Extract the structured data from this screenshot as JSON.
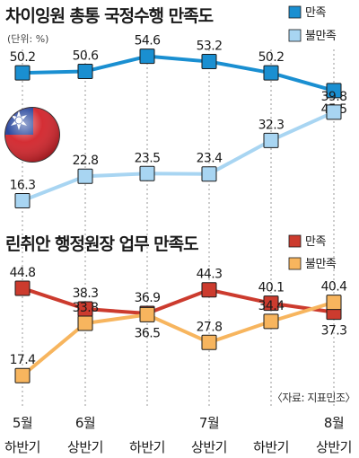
{
  "chart_data": [
    {
      "type": "line",
      "title": "차이잉원 총통 국정수행 만족도",
      "unit_note": "(단위: %)",
      "categories": [
        "5월 하반기",
        "6월 상반기",
        "6월 하반기",
        "7월 상반기",
        "7월 하반기",
        "8월 상반기"
      ],
      "series": [
        {
          "name": "만족",
          "color": "#1a8fd1",
          "values": [
            50.2,
            50.6,
            54.6,
            53.2,
            50.2,
            45.5
          ]
        },
        {
          "name": "불만족",
          "color": "#a8d5f2",
          "values": [
            16.3,
            22.8,
            23.5,
            23.4,
            32.3,
            39.8
          ]
        }
      ],
      "legend_position": "top-right",
      "grid": "vertical dotted"
    },
    {
      "type": "line",
      "title": "린취안 행정원장 업무 만족도",
      "categories": [
        "5월 하반기",
        "6월 상반기",
        "6월 하반기",
        "7월 상반기",
        "7월 하반기",
        "8월 상반기"
      ],
      "series": [
        {
          "name": "만족",
          "color": "#cc3b2e",
          "values": [
            44.8,
            38.3,
            36.9,
            44.3,
            40.1,
            37.3
          ]
        },
        {
          "name": "불만족",
          "color": "#f7b55e",
          "values": [
            17.4,
            33.8,
            36.5,
            27.8,
            34.4,
            40.4
          ]
        }
      ],
      "legend_position": "top-right",
      "grid": "vertical dotted"
    }
  ],
  "source": "〈자료: 지표민조〉",
  "x_axis": {
    "month_labels": [
      "5월",
      "6월",
      "",
      "7월",
      "",
      "8월"
    ],
    "half_labels": [
      "하반기",
      "상반기",
      "하반기",
      "상반기",
      "하반기",
      "상반기"
    ]
  },
  "flag": {
    "name": "taiwan-flag-icon",
    "colors": {
      "red": "#d2232a",
      "blue": "#1f3f99",
      "white": "#ffffff"
    }
  }
}
